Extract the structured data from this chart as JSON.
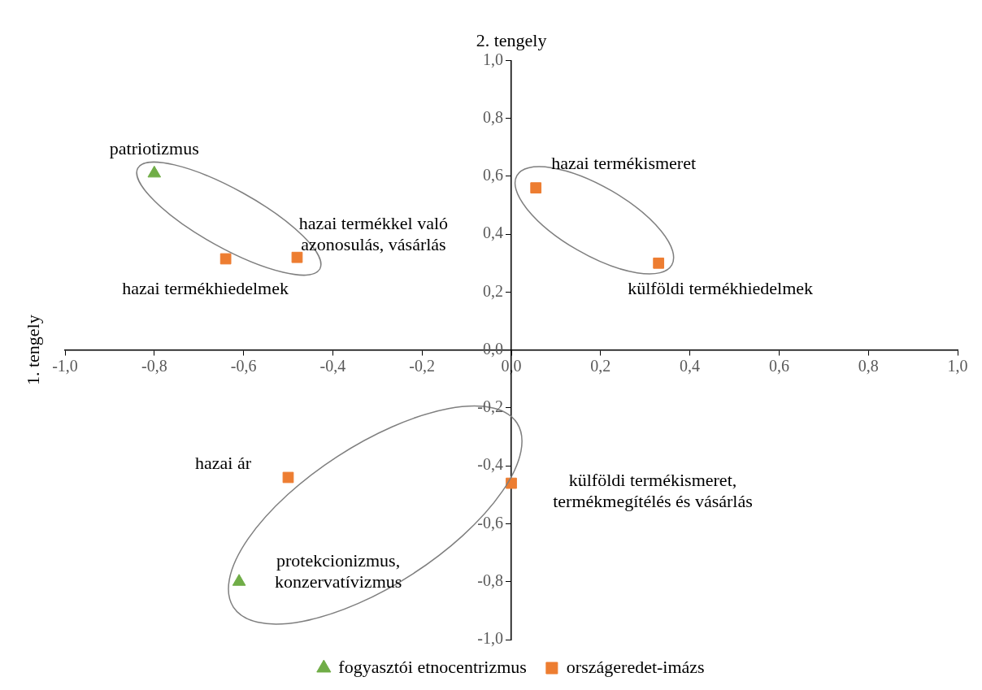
{
  "chart_data": {
    "type": "scatter",
    "title": "2. tengely",
    "ylabel": "1. tengely",
    "series": [
      {
        "name": "fogyasztói etnocentrizmus",
        "color": "#70ad47",
        "marker": "triangle",
        "x": [
          -0.8,
          -0.61
        ],
        "values": [
          0.61,
          -0.8
        ]
      },
      {
        "name": "országeredet-imázs",
        "color": "#ed7d31",
        "marker": "square",
        "x": [
          -0.64,
          -0.48,
          0.055,
          0.33,
          -0.5,
          0.0
        ],
        "values": [
          0.315,
          0.32,
          0.56,
          0.3,
          -0.44,
          -0.46
        ]
      }
    ],
    "xlim": [
      -1,
      1
    ],
    "ylim": [
      -1,
      1
    ],
    "xticks": [
      {
        "value": -1,
        "label": "-1,0"
      },
      {
        "value": -0.8,
        "label": "-0,8"
      },
      {
        "value": -0.6,
        "label": "-0,6"
      },
      {
        "value": -0.4,
        "label": "-0,4"
      },
      {
        "value": -0.2,
        "label": "-0,2"
      },
      {
        "value": 0,
        "label": "0,0"
      },
      {
        "value": 0.2,
        "label": "0,2"
      },
      {
        "value": 0.4,
        "label": "0,4"
      },
      {
        "value": 0.6,
        "label": "0,6"
      },
      {
        "value": 0.8,
        "label": "0,8"
      },
      {
        "value": 1,
        "label": "1,0"
      }
    ],
    "yticks": [
      {
        "value": -1,
        "label": "-1,0"
      },
      {
        "value": -0.8,
        "label": "-0,8"
      },
      {
        "value": -0.6,
        "label": "-0,6"
      },
      {
        "value": -0.4,
        "label": "-0,4"
      },
      {
        "value": -0.2,
        "label": "-0,2"
      },
      {
        "value": 0,
        "label": "0,0"
      },
      {
        "value": 0.2,
        "label": "0,2"
      },
      {
        "value": 0.4,
        "label": "0,4"
      },
      {
        "value": 0.6,
        "label": "0,6"
      },
      {
        "value": 0.8,
        "label": "0,8"
      },
      {
        "value": 1,
        "label": "1,0"
      }
    ],
    "grid": false,
    "legend": "bottom",
    "annotations": [
      {
        "text": "patriotizmus",
        "x": -0.8,
        "y": 0.61
      },
      {
        "text": "hazai termékkel való\nazonosulás, vásárlás",
        "x": -0.48,
        "y": 0.32
      },
      {
        "text": "hazai termékhiedelmek",
        "x": -0.64,
        "y": 0.315
      },
      {
        "text": "hazai termékismeret",
        "x": 0.055,
        "y": 0.56
      },
      {
        "text": "külföldi termékhiedelmek",
        "x": 0.33,
        "y": 0.3
      },
      {
        "text": "hazai ár",
        "x": -0.5,
        "y": -0.44
      },
      {
        "text": "külföldi termékismeret,\ntermékmegítélés és vásárlás",
        "x": 0.0,
        "y": -0.46
      },
      {
        "text": "protekcionizmus,\nkonzervatívizmus",
        "x": -0.61,
        "y": -0.8
      }
    ]
  }
}
